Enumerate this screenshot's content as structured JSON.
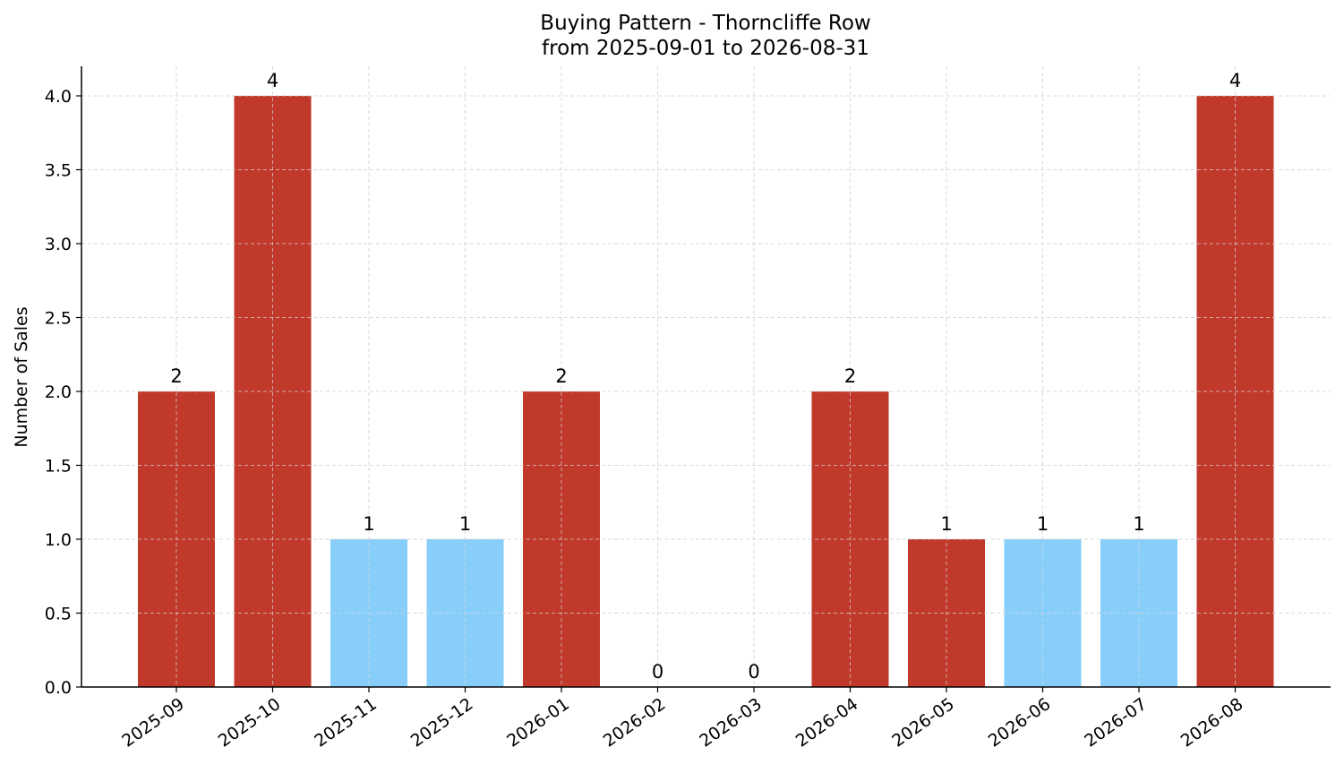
{
  "chart_data": {
    "type": "bar",
    "title": "Buying Pattern - Thorncliffe Row",
    "subtitle": "from 2025-09-01 to 2026-08-31",
    "xlabel": "",
    "ylabel": "Number of Sales",
    "categories": [
      "2025-09",
      "2025-10",
      "2025-11",
      "2025-12",
      "2026-01",
      "2026-02",
      "2026-03",
      "2026-04",
      "2026-05",
      "2026-06",
      "2026-07",
      "2026-08"
    ],
    "values": [
      2,
      4,
      1,
      1,
      2,
      0,
      0,
      2,
      1,
      1,
      1,
      4
    ],
    "bar_colors": [
      "#c0392b",
      "#c0392b",
      "#87cefa",
      "#87cefa",
      "#c0392b",
      "#c0392b",
      "#c0392b",
      "#c0392b",
      "#c0392b",
      "#87cefa",
      "#87cefa",
      "#c0392b"
    ],
    "data_labels": [
      "2",
      "4",
      "1",
      "1",
      "2",
      "0",
      "0",
      "2",
      "1",
      "1",
      "1",
      "4"
    ],
    "ylim": [
      0,
      4.2
    ],
    "yticks": [
      0.0,
      0.5,
      1.0,
      1.5,
      2.0,
      2.5,
      3.0,
      3.5,
      4.0
    ],
    "ytick_labels": [
      "0.0",
      "0.5",
      "1.0",
      "1.5",
      "2.0",
      "2.5",
      "3.0",
      "3.5",
      "4.0"
    ],
    "grid": true,
    "legend": "none"
  }
}
